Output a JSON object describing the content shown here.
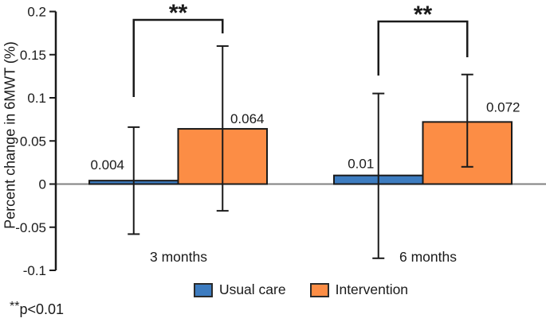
{
  "figure": {
    "footnote": {
      "asterisks": "**",
      "text": "p<0.01"
    }
  },
  "chart_data": {
    "type": "bar",
    "title": "",
    "xlabel": "",
    "ylabel": "Percent change in 6MWT (%)",
    "ylim": [
      -0.1,
      0.2
    ],
    "yticks": [
      0.2,
      0.15,
      0.1,
      0.05,
      0,
      -0.05,
      -0.1
    ],
    "ytick_labels": [
      "0.2",
      "0.15",
      "0.1",
      "0.05",
      "0",
      "-0.05",
      "-0.1"
    ],
    "categories": [
      "3 months",
      "6 months"
    ],
    "series": [
      {
        "name": "Usual care",
        "color": "#3d7cc0",
        "values": [
          0.004,
          0.01
        ],
        "value_labels": [
          "0.004",
          "0.01"
        ],
        "error_high": [
          0.066,
          0.105
        ],
        "error_low": [
          -0.058,
          -0.086
        ]
      },
      {
        "name": "Intervention",
        "color": "#fc8d45",
        "values": [
          0.064,
          0.072
        ],
        "value_labels": [
          "0.064",
          "0.072"
        ],
        "error_high": [
          0.16,
          0.127
        ],
        "error_low": [
          -0.031,
          0.02
        ]
      }
    ],
    "significance": [
      {
        "group": "3 months",
        "compares": [
          "Usual care",
          "Intervention"
        ],
        "label": "**"
      },
      {
        "group": "6 months",
        "compares": [
          "Usual care",
          "Intervention"
        ],
        "label": "**"
      }
    ],
    "legend": {
      "position": "bottom",
      "entries": [
        "Usual care",
        "Intervention"
      ]
    },
    "grid": false,
    "bar_edge_color": "#1a1a1a",
    "zero_line_color": "#808080",
    "footnote": "**p<0.01"
  }
}
